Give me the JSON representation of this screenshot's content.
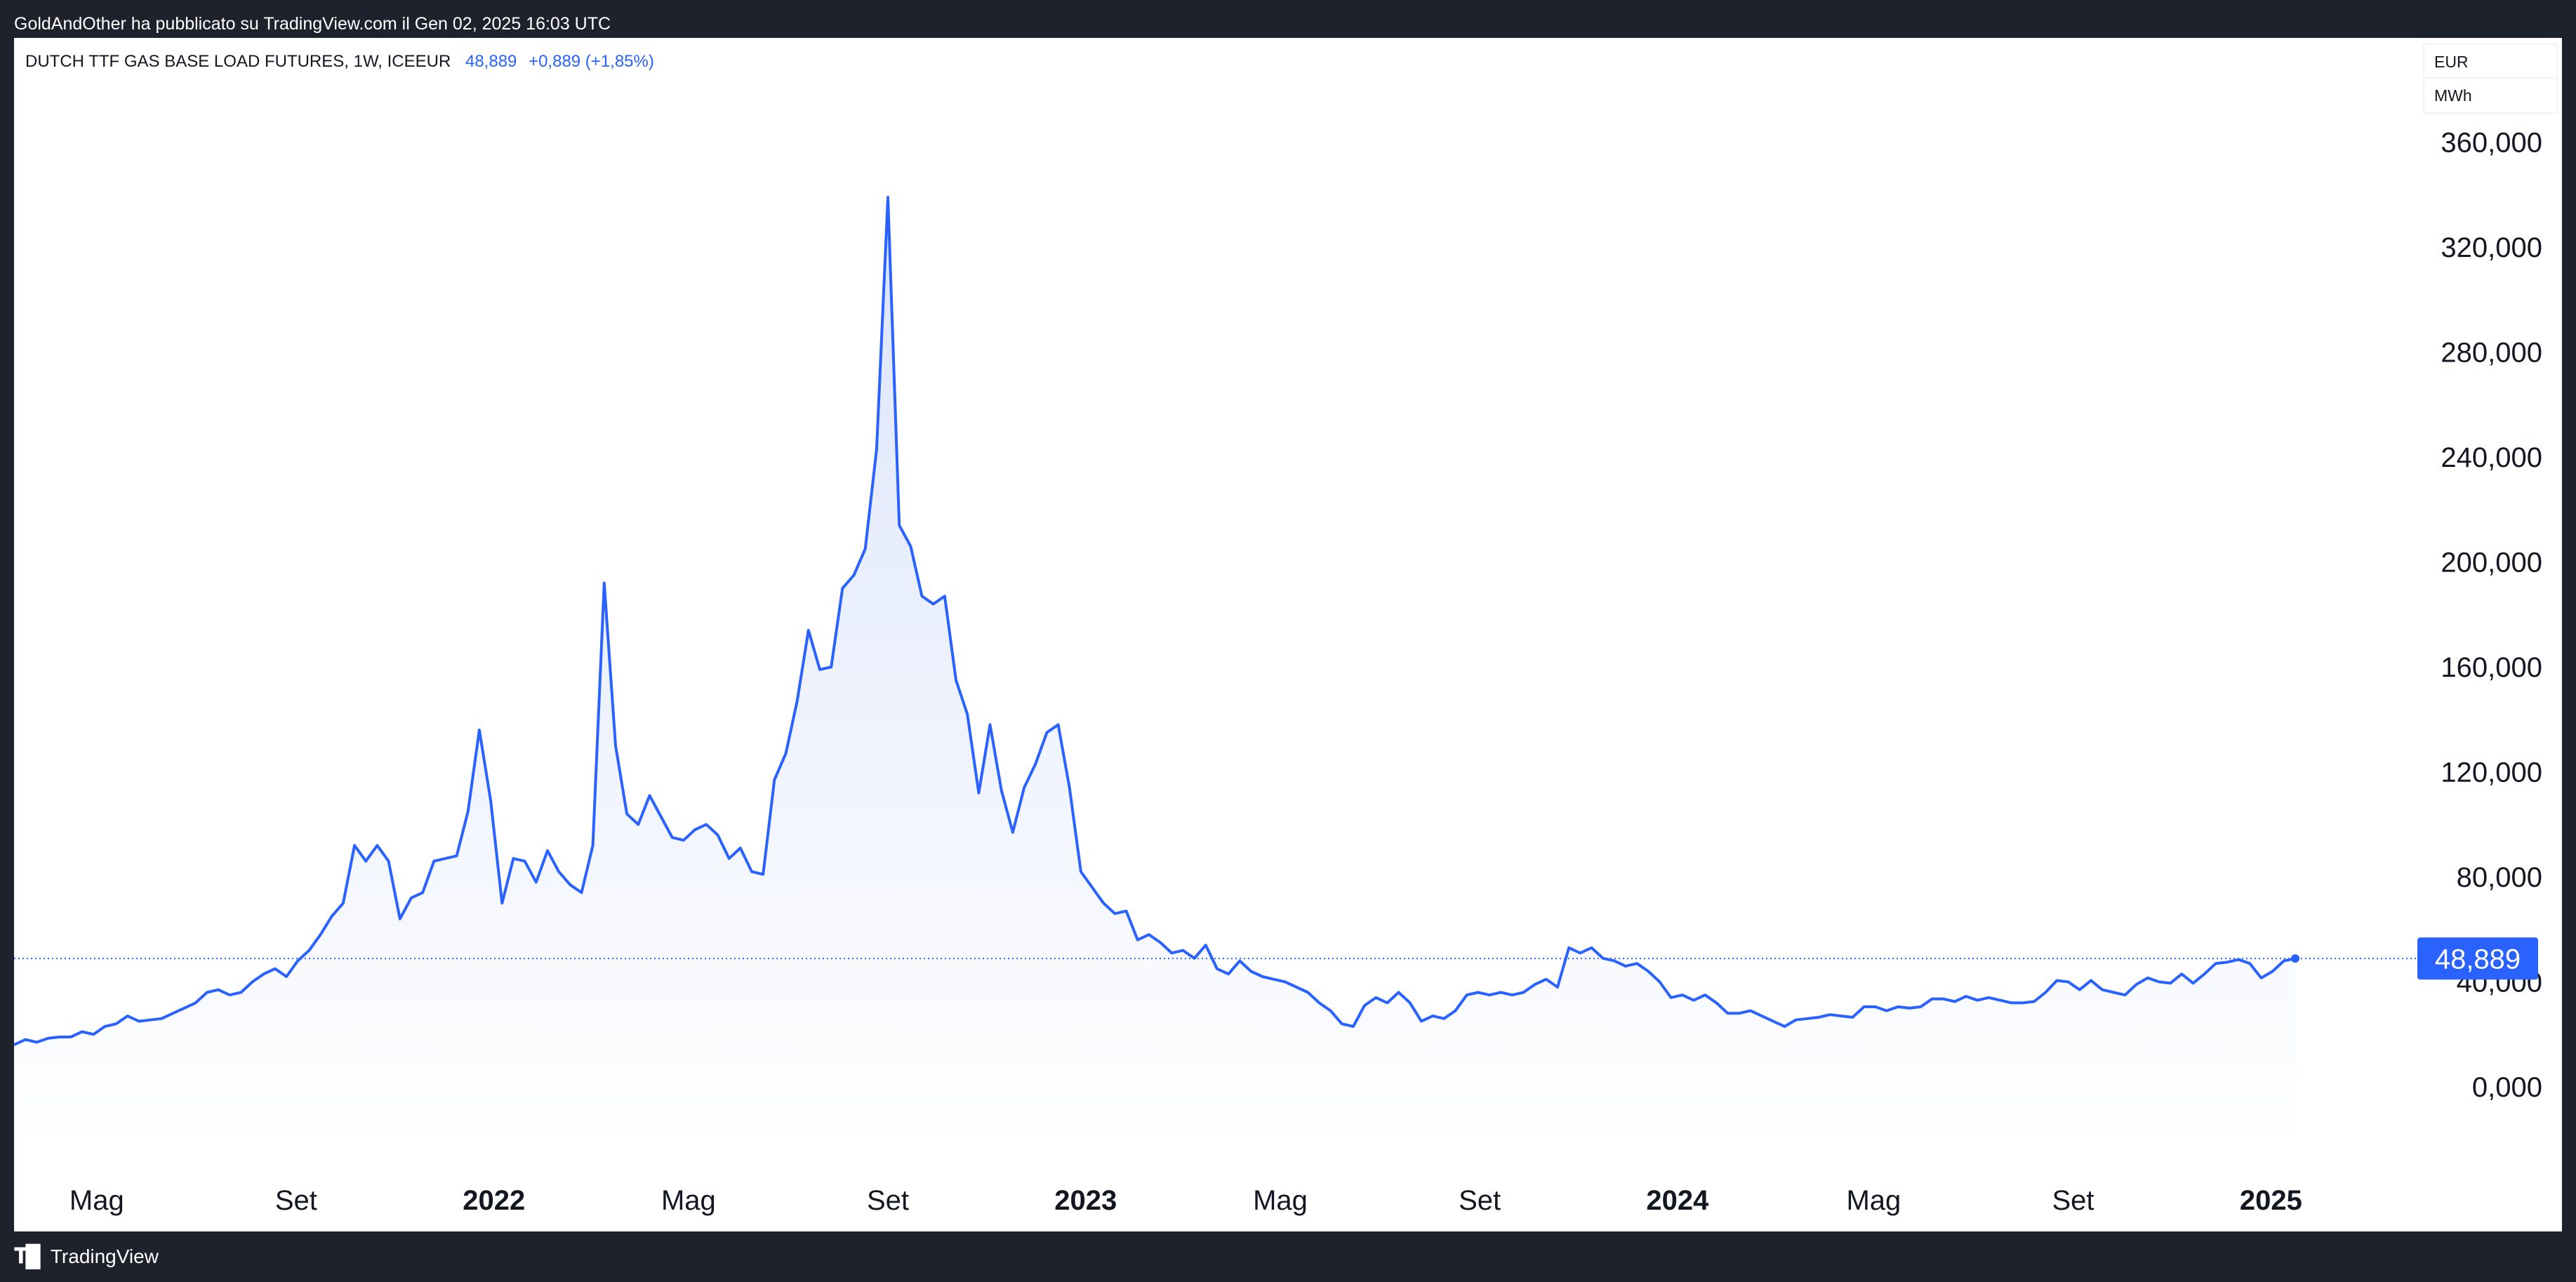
{
  "header": {
    "published_text": "GoldAndOther ha pubblicato su TradingView.com il Gen 02, 2025 16:03 UTC"
  },
  "legend": {
    "symbol": "DUTCH TTF GAS BASE LOAD FUTURES, 1W, ICEEUR",
    "price": "48,889",
    "change": "+0,889 (+1,85%)"
  },
  "currency": {
    "currency": "EUR",
    "unit": "MWh"
  },
  "footer": {
    "logo_icon": "tradingview-logo-icon",
    "brand": "TradingView"
  },
  "colors": {
    "line": "#2962ff",
    "fill_top": "#dbe4fb",
    "fill_bottom": "#ffffff",
    "price_label_bg": "#2962ff"
  },
  "chart_data": {
    "type": "area",
    "title": "DUTCH TTF GAS BASE LOAD FUTURES, 1W, ICEEUR",
    "xlabel": "",
    "ylabel": "",
    "ylim": [
      -15,
      375
    ],
    "y_ticks": [
      0,
      40,
      80,
      120,
      160,
      200,
      240,
      280,
      320,
      360
    ],
    "y_tick_labels": [
      "0,000",
      "40,000",
      "80,000",
      "120,000",
      "160,000",
      "200,000",
      "240,000",
      "280,000",
      "320,000",
      "360,000"
    ],
    "x_range": [
      "2021-03-11",
      "2025-02-13"
    ],
    "x_ticks": [
      {
        "date": "2021-05-01",
        "label": "Mag",
        "bold": false
      },
      {
        "date": "2021-09-01",
        "label": "Set",
        "bold": false
      },
      {
        "date": "2022-01-01",
        "label": "2022",
        "bold": true
      },
      {
        "date": "2022-05-01",
        "label": "Mag",
        "bold": false
      },
      {
        "date": "2022-09-01",
        "label": "Set",
        "bold": false
      },
      {
        "date": "2023-01-01",
        "label": "2023",
        "bold": true
      },
      {
        "date": "2023-05-01",
        "label": "Mag",
        "bold": false
      },
      {
        "date": "2023-09-01",
        "label": "Set",
        "bold": false
      },
      {
        "date": "2024-01-01",
        "label": "2024",
        "bold": true
      },
      {
        "date": "2024-05-01",
        "label": "Mag",
        "bold": false
      },
      {
        "date": "2024-09-01",
        "label": "Set",
        "bold": false
      },
      {
        "date": "2025-01-01",
        "label": "2025",
        "bold": true
      }
    ],
    "last_value": 48.889,
    "last_value_label": "48,889",
    "grid": false,
    "series": [
      {
        "start_date": "2021-03-11",
        "interval_days": 7,
        "values": [
          16,
          18,
          17,
          18.5,
          19,
          19,
          21,
          20,
          23,
          24,
          27,
          25,
          25.5,
          26,
          28,
          30,
          32,
          36,
          37,
          35,
          36,
          40,
          43,
          45,
          42,
          48,
          52,
          58,
          65,
          70,
          92,
          86,
          92,
          86,
          64,
          72,
          74,
          86,
          87,
          88,
          105,
          136,
          109,
          70,
          87,
          86,
          78,
          90,
          82,
          77,
          74,
          92,
          192,
          130,
          104,
          100,
          111,
          103,
          95,
          94,
          98,
          100,
          96,
          87,
          91,
          82,
          81,
          117,
          127,
          147,
          174,
          159,
          160,
          190,
          195,
          205,
          243,
          339,
          214,
          206,
          187,
          184,
          187,
          155,
          142,
          112,
          138,
          113,
          97,
          114,
          123,
          135,
          138,
          114,
          82,
          76,
          70,
          66,
          67,
          56,
          58,
          55,
          51,
          52,
          49,
          54,
          45,
          43,
          48,
          44,
          42,
          41,
          40,
          38,
          36,
          32,
          29,
          24,
          23,
          31,
          34,
          32,
          36,
          32,
          25,
          27,
          26,
          29,
          35,
          36,
          35,
          36,
          35,
          36,
          39,
          41,
          38,
          53,
          51,
          53,
          49,
          48,
          46,
          47,
          44,
          40,
          34,
          35,
          33,
          35,
          32,
          28,
          28,
          29,
          27,
          25,
          23,
          25.5,
          26,
          26.5,
          27.5,
          27,
          26.5,
          30.5,
          30.5,
          29,
          30.5,
          30,
          30.5,
          33.5,
          33.5,
          32.5,
          34.5,
          33,
          34,
          33,
          32,
          32,
          32.5,
          36,
          40.5,
          40,
          37,
          40.5,
          37,
          36,
          35,
          39,
          41.5,
          40,
          39.5,
          43,
          39.5,
          43,
          47,
          47.5,
          48.5,
          47,
          41.5,
          44,
          48,
          48.889
        ]
      }
    ]
  }
}
